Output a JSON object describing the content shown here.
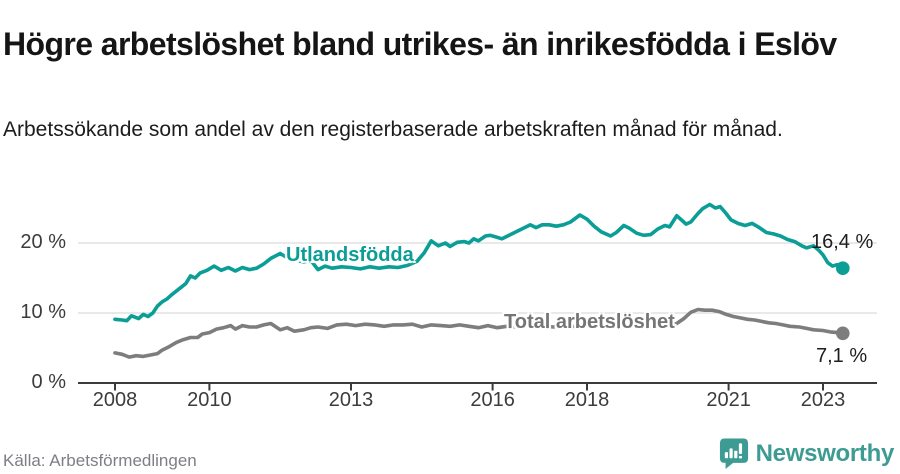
{
  "header": {
    "title": "Högre arbetslöshet bland utrikes- än inrikesfödda i Eslöv",
    "subtitle": "Arbetssökande som andel av den registerbaserade arbetskraften månad för månad."
  },
  "chart_data": {
    "type": "line",
    "title": "Högre arbetslöshet bland utrikes- än inrikesfödda i Eslöv",
    "subtitle": "Arbetssökande som andel av den registerbaserade arbetskraften månad för månad.",
    "x_unit": "year (monthly data)",
    "xlim": [
      2007.2,
      2024.1
    ],
    "ylim": [
      0,
      27
    ],
    "grid": "horizontal",
    "colors": {
      "grid": "#dcdcdc",
      "axis": "#3b3b3b",
      "tick_text": "#3c3c3c"
    },
    "y_ticks": [
      {
        "label": "0 %",
        "value": 0
      },
      {
        "label": "10 %",
        "value": 10
      },
      {
        "label": "20 %",
        "value": 20
      }
    ],
    "x_ticks": [
      {
        "label": "2008",
        "year": 2008
      },
      {
        "label": "2010",
        "year": 2010
      },
      {
        "label": "2013",
        "year": 2013
      },
      {
        "label": "2016",
        "year": 2016
      },
      {
        "label": "2018",
        "year": 2018
      },
      {
        "label": "2021",
        "year": 2021
      },
      {
        "label": "2023",
        "year": 2023
      }
    ],
    "series": [
      {
        "name": "Utlandsfödda",
        "inline_label": "Utlandsfödda",
        "end_label": "16,4 %",
        "end_value": 16.4,
        "color": "#0a9e96",
        "points": [
          [
            2008.0,
            9.1
          ],
          [
            2008.15,
            9.0
          ],
          [
            2008.25,
            8.9
          ],
          [
            2008.35,
            9.6
          ],
          [
            2008.5,
            9.2
          ],
          [
            2008.6,
            9.8
          ],
          [
            2008.7,
            9.5
          ],
          [
            2008.8,
            10.0
          ],
          [
            2008.9,
            11.0
          ],
          [
            2009.0,
            11.6
          ],
          [
            2009.1,
            12.0
          ],
          [
            2009.2,
            12.6
          ],
          [
            2009.35,
            13.4
          ],
          [
            2009.5,
            14.2
          ],
          [
            2009.6,
            15.3
          ],
          [
            2009.7,
            15.0
          ],
          [
            2009.8,
            15.7
          ],
          [
            2009.95,
            16.1
          ],
          [
            2010.1,
            16.7
          ],
          [
            2010.25,
            16.1
          ],
          [
            2010.4,
            16.5
          ],
          [
            2010.55,
            16.0
          ],
          [
            2010.7,
            16.5
          ],
          [
            2010.85,
            16.2
          ],
          [
            2011.0,
            16.4
          ],
          [
            2011.15,
            17.0
          ],
          [
            2011.3,
            17.8
          ],
          [
            2011.5,
            18.5
          ],
          [
            2011.65,
            17.9
          ],
          [
            2011.8,
            17.6
          ],
          [
            2012.0,
            17.3
          ],
          [
            2012.15,
            17.5
          ],
          [
            2012.3,
            16.2
          ],
          [
            2012.45,
            16.7
          ],
          [
            2012.6,
            16.4
          ],
          [
            2012.8,
            16.6
          ],
          [
            2013.0,
            16.5
          ],
          [
            2013.2,
            16.3
          ],
          [
            2013.4,
            16.6
          ],
          [
            2013.6,
            16.4
          ],
          [
            2013.8,
            16.6
          ],
          [
            2014.0,
            16.5
          ],
          [
            2014.2,
            16.8
          ],
          [
            2014.4,
            17.4
          ],
          [
            2014.55,
            18.6
          ],
          [
            2014.7,
            20.3
          ],
          [
            2014.85,
            19.6
          ],
          [
            2015.0,
            20.0
          ],
          [
            2015.1,
            19.5
          ],
          [
            2015.25,
            20.1
          ],
          [
            2015.4,
            20.2
          ],
          [
            2015.5,
            20.0
          ],
          [
            2015.6,
            20.6
          ],
          [
            2015.7,
            20.3
          ],
          [
            2015.85,
            21.0
          ],
          [
            2015.95,
            21.1
          ],
          [
            2016.1,
            20.8
          ],
          [
            2016.2,
            20.6
          ],
          [
            2016.35,
            21.1
          ],
          [
            2016.5,
            21.6
          ],
          [
            2016.65,
            22.1
          ],
          [
            2016.8,
            22.6
          ],
          [
            2016.92,
            22.2
          ],
          [
            2017.05,
            22.6
          ],
          [
            2017.2,
            22.6
          ],
          [
            2017.35,
            22.4
          ],
          [
            2017.5,
            22.6
          ],
          [
            2017.65,
            23.0
          ],
          [
            2017.85,
            24.0
          ],
          [
            2018.0,
            23.4
          ],
          [
            2018.15,
            22.4
          ],
          [
            2018.3,
            21.6
          ],
          [
            2018.5,
            21.0
          ],
          [
            2018.62,
            21.5
          ],
          [
            2018.78,
            22.5
          ],
          [
            2018.9,
            22.1
          ],
          [
            2019.05,
            21.4
          ],
          [
            2019.2,
            21.1
          ],
          [
            2019.35,
            21.2
          ],
          [
            2019.5,
            22.0
          ],
          [
            2019.65,
            22.5
          ],
          [
            2019.75,
            22.3
          ],
          [
            2019.9,
            23.9
          ],
          [
            2020.0,
            23.3
          ],
          [
            2020.1,
            22.7
          ],
          [
            2020.2,
            23.0
          ],
          [
            2020.35,
            24.2
          ],
          [
            2020.45,
            24.9
          ],
          [
            2020.6,
            25.5
          ],
          [
            2020.72,
            25.0
          ],
          [
            2020.82,
            25.2
          ],
          [
            2020.95,
            24.2
          ],
          [
            2021.05,
            23.3
          ],
          [
            2021.2,
            22.8
          ],
          [
            2021.35,
            22.5
          ],
          [
            2021.5,
            22.8
          ],
          [
            2021.65,
            22.2
          ],
          [
            2021.8,
            21.5
          ],
          [
            2021.95,
            21.3
          ],
          [
            2022.1,
            21.0
          ],
          [
            2022.25,
            20.5
          ],
          [
            2022.4,
            20.2
          ],
          [
            2022.55,
            19.6
          ],
          [
            2022.65,
            19.3
          ],
          [
            2022.8,
            19.6
          ],
          [
            2022.92,
            18.9
          ],
          [
            2023.0,
            18.3
          ],
          [
            2023.1,
            17.2
          ],
          [
            2023.2,
            16.7
          ],
          [
            2023.3,
            16.9
          ],
          [
            2023.42,
            16.4
          ]
        ]
      },
      {
        "name": "Total arbetslöshet",
        "inline_label": "Total arbetslöshet",
        "end_label": "7,1 %",
        "end_value": 7.1,
        "color": "#7d7d7d",
        "label_color": "#757575",
        "points": [
          [
            2008.0,
            4.3
          ],
          [
            2008.15,
            4.1
          ],
          [
            2008.3,
            3.7
          ],
          [
            2008.45,
            3.9
          ],
          [
            2008.6,
            3.8
          ],
          [
            2008.75,
            4.0
          ],
          [
            2008.9,
            4.2
          ],
          [
            2009.0,
            4.7
          ],
          [
            2009.15,
            5.2
          ],
          [
            2009.3,
            5.8
          ],
          [
            2009.45,
            6.2
          ],
          [
            2009.6,
            6.5
          ],
          [
            2009.75,
            6.5
          ],
          [
            2009.85,
            7.0
          ],
          [
            2010.0,
            7.2
          ],
          [
            2010.15,
            7.7
          ],
          [
            2010.3,
            7.9
          ],
          [
            2010.45,
            8.2
          ],
          [
            2010.55,
            7.7
          ],
          [
            2010.7,
            8.2
          ],
          [
            2010.85,
            8.0
          ],
          [
            2011.0,
            8.0
          ],
          [
            2011.15,
            8.3
          ],
          [
            2011.3,
            8.5
          ],
          [
            2011.5,
            7.6
          ],
          [
            2011.65,
            7.9
          ],
          [
            2011.8,
            7.4
          ],
          [
            2012.0,
            7.6
          ],
          [
            2012.15,
            7.9
          ],
          [
            2012.3,
            8.0
          ],
          [
            2012.5,
            7.8
          ],
          [
            2012.7,
            8.3
          ],
          [
            2012.9,
            8.4
          ],
          [
            2013.1,
            8.2
          ],
          [
            2013.3,
            8.4
          ],
          [
            2013.5,
            8.3
          ],
          [
            2013.7,
            8.1
          ],
          [
            2013.9,
            8.3
          ],
          [
            2014.1,
            8.3
          ],
          [
            2014.3,
            8.4
          ],
          [
            2014.5,
            8.0
          ],
          [
            2014.7,
            8.3
          ],
          [
            2014.9,
            8.2
          ],
          [
            2015.1,
            8.1
          ],
          [
            2015.3,
            8.3
          ],
          [
            2015.5,
            8.1
          ],
          [
            2015.7,
            7.9
          ],
          [
            2015.9,
            8.2
          ],
          [
            2016.1,
            7.9
          ],
          [
            2016.3,
            8.1
          ],
          [
            2016.5,
            8.0
          ],
          [
            2016.7,
            8.2
          ],
          [
            2016.9,
            8.0
          ],
          [
            2017.1,
            8.1
          ],
          [
            2017.3,
            8.0
          ],
          [
            2017.5,
            8.2
          ],
          [
            2017.7,
            8.1
          ],
          [
            2017.9,
            8.0
          ],
          [
            2018.1,
            8.1
          ],
          [
            2018.3,
            8.0
          ],
          [
            2018.5,
            7.9
          ],
          [
            2018.7,
            8.0
          ],
          [
            2018.9,
            8.1
          ],
          [
            2019.1,
            8.0
          ],
          [
            2019.3,
            8.1
          ],
          [
            2019.5,
            8.3
          ],
          [
            2019.7,
            8.2
          ],
          [
            2019.9,
            8.5
          ],
          [
            2020.05,
            9.2
          ],
          [
            2020.2,
            10.1
          ],
          [
            2020.35,
            10.5
          ],
          [
            2020.5,
            10.4
          ],
          [
            2020.65,
            10.4
          ],
          [
            2020.8,
            10.2
          ],
          [
            2020.95,
            9.8
          ],
          [
            2021.1,
            9.5
          ],
          [
            2021.25,
            9.3
          ],
          [
            2021.4,
            9.1
          ],
          [
            2021.55,
            9.0
          ],
          [
            2021.7,
            8.8
          ],
          [
            2021.85,
            8.6
          ],
          [
            2022.0,
            8.5
          ],
          [
            2022.15,
            8.3
          ],
          [
            2022.3,
            8.1
          ],
          [
            2022.5,
            8.0
          ],
          [
            2022.65,
            7.8
          ],
          [
            2022.8,
            7.6
          ],
          [
            2023.0,
            7.5
          ],
          [
            2023.15,
            7.3
          ],
          [
            2023.3,
            7.2
          ],
          [
            2023.42,
            7.1
          ]
        ]
      }
    ]
  },
  "footer": {
    "source": "Källa: Arbetsförmedlingen",
    "brand": "Newsworthy",
    "brand_color": "#3e9b93"
  }
}
